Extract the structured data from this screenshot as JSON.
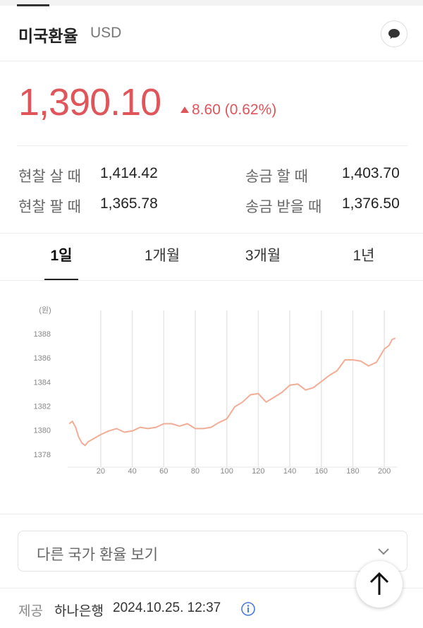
{
  "header": {
    "title": "미국환율",
    "currency": "USD"
  },
  "price": {
    "value": "1,390.10",
    "change": "8.60 (0.62%)"
  },
  "rates": [
    {
      "label": "현찰 살 때",
      "value": "1,414.42"
    },
    {
      "label": "송금 할 때",
      "value": "1,403.70"
    },
    {
      "label": "현찰 팔 때",
      "value": "1,365.78"
    },
    {
      "label": "송금 받을 때",
      "value": "1,376.50"
    }
  ],
  "tabs": [
    "1일",
    "1개월",
    "3개월",
    "1년"
  ],
  "chart_data": {
    "type": "line",
    "ylabel": "(원)",
    "color": "#f2ad96",
    "x": [
      0,
      2,
      4,
      6,
      8,
      10,
      12,
      16,
      20,
      25,
      30,
      35,
      40,
      45,
      50,
      55,
      60,
      65,
      70,
      75,
      80,
      85,
      90,
      95,
      100,
      105,
      110,
      115,
      120,
      125,
      130,
      135,
      140,
      145,
      150,
      155,
      160,
      165,
      170,
      175,
      180,
      185,
      190,
      195,
      200,
      203,
      205,
      207
    ],
    "values": [
      1380.6,
      1380.8,
      1380.3,
      1379.5,
      1379.0,
      1378.8,
      1379.1,
      1379.4,
      1379.7,
      1380.0,
      1380.2,
      1379.9,
      1380.0,
      1380.3,
      1380.2,
      1380.3,
      1380.6,
      1380.6,
      1380.4,
      1380.6,
      1380.2,
      1380.2,
      1380.3,
      1380.7,
      1381.0,
      1382.0,
      1382.4,
      1383.0,
      1383.1,
      1382.4,
      1382.8,
      1383.2,
      1383.8,
      1383.9,
      1383.4,
      1383.6,
      1384.1,
      1384.6,
      1385.0,
      1385.9,
      1385.9,
      1385.8,
      1385.4,
      1385.7,
      1386.8,
      1387.1,
      1387.6,
      1387.7
    ],
    "xlim": [
      -1,
      208
    ],
    "ylim": [
      1377,
      1390
    ],
    "xticks": [
      20,
      40,
      60,
      80,
      100,
      120,
      140,
      160,
      180,
      200
    ],
    "yticks": [
      1378,
      1380,
      1382,
      1384,
      1386,
      1388
    ],
    "grid": true
  },
  "dropdown": "다른 국가 환율 보기",
  "footer": {
    "source_label": "제공",
    "source": "하나은행",
    "timestamp": "2024.10.25. 12:37"
  }
}
